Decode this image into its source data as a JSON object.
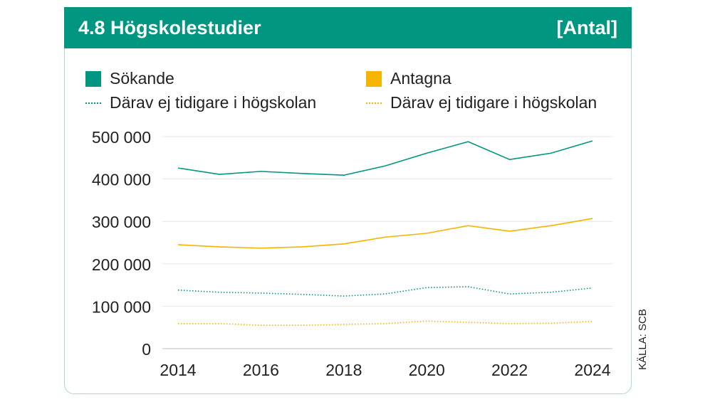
{
  "header": {
    "title": "4.8  Högskolestudier",
    "unit": "[Antal]"
  },
  "source": "KÄLLA: SCB",
  "colors": {
    "teal": "#009680",
    "yellow": "#f5b400"
  },
  "chart_data": {
    "type": "line",
    "title": "4.8 Högskolestudier",
    "unit": "[Antal]",
    "x": [
      2014,
      2015,
      2016,
      2017,
      2018,
      2019,
      2020,
      2021,
      2022,
      2023,
      2024
    ],
    "xticks": [
      "2014",
      "2016",
      "2018",
      "2020",
      "2022",
      "2024"
    ],
    "yticks": [
      "0",
      "100 000",
      "200 000",
      "300 000",
      "400 000",
      "500 000"
    ],
    "ylim": [
      0,
      500000
    ],
    "legend": "top",
    "series": [
      {
        "name": "Sökande",
        "style": "solid",
        "color": "#009680",
        "values": [
          426000,
          411000,
          418000,
          413000,
          409000,
          431000,
          461000,
          488000,
          446000,
          461000,
          490000
        ]
      },
      {
        "name": "Antagna",
        "style": "solid",
        "color": "#f5b400",
        "values": [
          245000,
          240000,
          237000,
          240000,
          247000,
          263000,
          272000,
          290000,
          277000,
          290000,
          307000
        ]
      },
      {
        "name": "Därav ej tidigare i högskolan",
        "style": "dotted",
        "color": "#009680",
        "values": [
          138000,
          133000,
          131000,
          128000,
          124000,
          129000,
          144000,
          146000,
          129000,
          133000,
          143000
        ]
      },
      {
        "name": "Därav ej tidigare i högskolan",
        "style": "dotted",
        "color": "#f5b400",
        "values": [
          59000,
          59000,
          55000,
          55000,
          57000,
          59000,
          65000,
          62000,
          59000,
          60000,
          64000
        ]
      }
    ]
  }
}
